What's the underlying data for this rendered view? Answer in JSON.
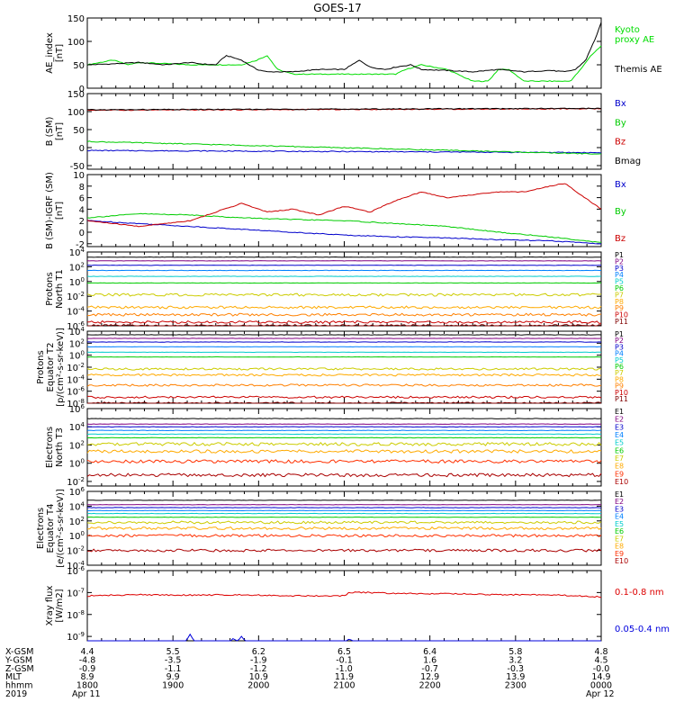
{
  "title": "GOES-17",
  "chart_data": [
    {
      "type": "line",
      "panel": "ae-index",
      "ylabel": [
        "AE_index",
        "[nT]"
      ],
      "yticks": [
        "150",
        "100",
        "50",
        "0"
      ],
      "ylim": [
        0,
        150
      ],
      "series": [
        {
          "name": "Kyoto",
          "name2": "proxy AE",
          "color": "#00dd00",
          "x": [
            0,
            0.05,
            0.08,
            0.1,
            0.2,
            0.3,
            0.33,
            0.35,
            0.37,
            0.4,
            0.43,
            0.5,
            0.55,
            0.6,
            0.62,
            0.65,
            0.7,
            0.75,
            0.78,
            0.8,
            0.82,
            0.85,
            0.9,
            0.94,
            0.96,
            0.98,
            1.0
          ],
          "values": [
            50,
            60,
            50,
            55,
            50,
            50,
            60,
            70,
            40,
            30,
            30,
            30,
            30,
            30,
            40,
            50,
            40,
            15,
            15,
            40,
            40,
            15,
            15,
            15,
            40,
            70,
            90
          ]
        },
        {
          "name": "Themis AE",
          "color": "#000000",
          "x": [
            0,
            0.05,
            0.1,
            0.15,
            0.2,
            0.22,
            0.25,
            0.27,
            0.3,
            0.33,
            0.35,
            0.37,
            0.4,
            0.45,
            0.5,
            0.53,
            0.55,
            0.58,
            0.6,
            0.63,
            0.65,
            0.7,
            0.75,
            0.8,
            0.85,
            0.9,
            0.93,
            0.95,
            0.97,
            0.99,
            1.0
          ],
          "values": [
            50,
            52,
            55,
            50,
            55,
            52,
            50,
            70,
            60,
            40,
            35,
            35,
            35,
            40,
            40,
            60,
            45,
            40,
            45,
            50,
            40,
            38,
            35,
            40,
            35,
            38,
            35,
            40,
            60,
            110,
            140
          ]
        }
      ]
    },
    {
      "type": "line",
      "panel": "b-sm",
      "ylabel": [
        "B (SM)",
        "[nT]"
      ],
      "yticks": [
        "150",
        "100",
        "50",
        "0",
        "-50"
      ],
      "ylim": [
        -60,
        150
      ],
      "series": [
        {
          "name": "Bx",
          "color": "#0000cc",
          "x": [
            0,
            1
          ],
          "values": [
            -8,
            -14
          ]
        },
        {
          "name": "By",
          "color": "#00cc00",
          "x": [
            0,
            1
          ],
          "values": [
            17,
            -18
          ]
        },
        {
          "name": "Bz",
          "color": "#cc0000",
          "x": [
            0,
            1
          ],
          "values": [
            104,
            108
          ]
        },
        {
          "name": "Bmag",
          "color": "#000000",
          "x": [
            0,
            1
          ],
          "values": [
            105,
            109
          ]
        }
      ]
    },
    {
      "type": "line",
      "panel": "b-minus-igrf",
      "ylabel": [
        "B (SM)-IGRF (SM)",
        "[nT]"
      ],
      "yticks": [
        "10",
        "8",
        "6",
        "4",
        "2",
        "0",
        "-2"
      ],
      "ylim": [
        -2.5,
        10
      ],
      "series": [
        {
          "name": "Bx",
          "color": "#0000cc",
          "x": [
            0,
            0.1,
            0.2,
            0.3,
            0.4,
            0.5,
            0.6,
            0.7,
            0.8,
            0.9,
            1.0
          ],
          "values": [
            2,
            1.5,
            1,
            0.5,
            0,
            -0.5,
            -0.8,
            -1,
            -1.3,
            -1.5,
            -2
          ]
        },
        {
          "name": "By",
          "color": "#00cc00",
          "x": [
            0,
            0.1,
            0.2,
            0.3,
            0.4,
            0.5,
            0.6,
            0.7,
            0.8,
            0.9,
            1.0
          ],
          "values": [
            2.5,
            3.2,
            3,
            2.5,
            2.2,
            2,
            1.5,
            1,
            0,
            -0.8,
            -1.8
          ]
        },
        {
          "name": "Bz",
          "color": "#cc0000",
          "x": [
            0,
            0.1,
            0.2,
            0.3,
            0.35,
            0.4,
            0.45,
            0.5,
            0.55,
            0.6,
            0.65,
            0.7,
            0.75,
            0.8,
            0.85,
            0.9,
            0.93,
            0.96,
            1.0
          ],
          "values": [
            2,
            1,
            2,
            5,
            3.5,
            4,
            3,
            4.5,
            3.5,
            5.5,
            7,
            6,
            6.5,
            7,
            7,
            8,
            8.5,
            6.5,
            4
          ]
        }
      ]
    },
    {
      "type": "line",
      "panel": "protons-t1",
      "log": true,
      "ylabel": [
        "Protons",
        "North T1"
      ],
      "yticks": [
        "10^4",
        "10^2",
        "10^0",
        "10^-2",
        "10^-4",
        "10^-6"
      ],
      "ylim": [
        -6,
        4
      ],
      "series": [
        {
          "name": "P1",
          "color": "#000000",
          "values": 3.3
        },
        {
          "name": "P2",
          "color": "#800080",
          "values": 2.8
        },
        {
          "name": "P3",
          "color": "#0000cc",
          "values": 2.2
        },
        {
          "name": "P4",
          "color": "#0080ff",
          "values": 1.5
        },
        {
          "name": "P5",
          "color": "#00cccc",
          "values": 0.7
        },
        {
          "name": "P6",
          "color": "#00cc00",
          "values": -0.2
        },
        {
          "name": "P7",
          "color": "#cccc00",
          "values": -1.8
        },
        {
          "name": "P8",
          "color": "#ffaa00",
          "values": -3.5
        },
        {
          "name": "P9",
          "color": "#ff8000",
          "values": -4.5
        },
        {
          "name": "P10",
          "color": "#cc0000",
          "values": -5.5
        },
        {
          "name": "P11",
          "color": "#800000",
          "values": -6
        }
      ]
    },
    {
      "type": "line",
      "panel": "protons-t2",
      "log": true,
      "ylabel": [
        "Protons",
        "Equator T2",
        "[p/(cm²-s-sr-keV)]"
      ],
      "yticks": [
        "10^4",
        "10^2",
        "10^0",
        "10^-2",
        "10^-4",
        "10^-6",
        "10^-8"
      ],
      "ylim": [
        -8,
        4
      ],
      "series": [
        {
          "name": "P1",
          "color": "#000000",
          "values": 3.4
        },
        {
          "name": "P2",
          "color": "#800080",
          "values": 2.8
        },
        {
          "name": "P3",
          "color": "#0000cc",
          "values": 2.2
        },
        {
          "name": "P4",
          "color": "#0080ff",
          "values": 1.4
        },
        {
          "name": "P5",
          "color": "#00cccc",
          "values": 0.5
        },
        {
          "name": "P6",
          "color": "#00cc00",
          "values": -0.3
        },
        {
          "name": "P7",
          "color": "#cccc00",
          "values": -2.3
        },
        {
          "name": "P8",
          "color": "#ffaa00",
          "values": -3.3
        },
        {
          "name": "P9",
          "color": "#ff8000",
          "values": -5
        },
        {
          "name": "P10",
          "color": "#cc0000",
          "values": -7
        },
        {
          "name": "P11",
          "color": "#800000",
          "values": -8
        }
      ]
    },
    {
      "type": "line",
      "panel": "electrons-t3",
      "log": true,
      "ylabel": [
        "Electrons",
        "North T3"
      ],
      "yticks": [
        "10^6",
        "10^4",
        "10^2",
        "10^0",
        "10^-2"
      ],
      "ylim": [
        -2.5,
        6
      ],
      "series": [
        {
          "name": "E1",
          "color": "#000000",
          "values": 4.9
        },
        {
          "name": "E2",
          "color": "#800080",
          "values": 4.3
        },
        {
          "name": "E3",
          "color": "#0000cc",
          "values": 4.0
        },
        {
          "name": "E4",
          "color": "#0080ff",
          "values": 3.6
        },
        {
          "name": "E5",
          "color": "#00cccc",
          "values": 3.2
        },
        {
          "name": "E6",
          "color": "#00cc00",
          "values": 2.8
        },
        {
          "name": "E7",
          "color": "#cccc00",
          "values": 2.1
        },
        {
          "name": "E8",
          "color": "#ffaa00",
          "values": 1.3
        },
        {
          "name": "E9",
          "color": "#ff3000",
          "values": 0.2
        },
        {
          "name": "E10",
          "color": "#aa0000",
          "values": -1.3
        }
      ]
    },
    {
      "type": "line",
      "panel": "electrons-t4",
      "log": true,
      "ylabel": [
        "Electrons",
        "Equator T4",
        "[e/(cm²-s-sr-keV)]"
      ],
      "yticks": [
        "10^6",
        "10^4",
        "10^2",
        "10^0",
        "10^-2",
        "10^-4"
      ],
      "ylim": [
        -4,
        6
      ],
      "series": [
        {
          "name": "E1",
          "color": "#000000",
          "values": 4.8
        },
        {
          "name": "E2",
          "color": "#800080",
          "values": 4.2
        },
        {
          "name": "E3",
          "color": "#0000cc",
          "values": 3.8
        },
        {
          "name": "E4",
          "color": "#0080ff",
          "values": 3.4
        },
        {
          "name": "E5",
          "color": "#00cccc",
          "values": 3.0
        },
        {
          "name": "E6",
          "color": "#00cc00",
          "values": 2.5
        },
        {
          "name": "E7",
          "color": "#cccc00",
          "values": 1.8
        },
        {
          "name": "E8",
          "color": "#ffaa00",
          "values": 1.0
        },
        {
          "name": "E9",
          "color": "#ff3000",
          "values": 0.0
        },
        {
          "name": "E10",
          "color": "#aa0000",
          "values": -2.0
        }
      ]
    },
    {
      "type": "line",
      "panel": "xray-flux",
      "log": true,
      "ylabel": [
        "Xray flux",
        "[W/m2]"
      ],
      "yticks": [
        "10^-6",
        "10^-7",
        "10^-8",
        "10^-9"
      ],
      "ylim": [
        -9.2,
        -6
      ],
      "series": [
        {
          "name": "0.1-0.8 nm",
          "color": "#dd0000",
          "x": [
            0,
            0.1,
            0.2,
            0.3,
            0.4,
            0.5,
            0.51,
            0.55,
            0.6,
            0.7,
            0.8,
            0.9,
            1.0
          ],
          "values": [
            -7.15,
            -7.1,
            -7.12,
            -7.1,
            -7.15,
            -7.15,
            -7.0,
            -7.0,
            -7.05,
            -7.05,
            -7.1,
            -7.1,
            -7.2
          ]
        },
        {
          "name": "0.05-0.4 nm",
          "color": "#0000dd",
          "x": [
            0,
            0.19,
            0.2,
            0.21,
            0.28,
            0.285,
            0.29,
            0.3,
            0.31,
            0.5,
            0.51,
            0.52,
            1.0
          ],
          "values": [
            -9.3,
            -9.3,
            -8.9,
            -9.3,
            -9.3,
            -9.0,
            -9.3,
            -9.0,
            -9.3,
            -9.3,
            -9.1,
            -9.3,
            -9.3
          ]
        }
      ]
    }
  ],
  "xaxis": {
    "row_labels": [
      "X-GSM",
      "Y-GSM",
      "Z-GSM",
      "MLT",
      "hhmm",
      "2019"
    ],
    "columns": [
      {
        "values": [
          "4.4",
          "-4.8",
          "-0.9",
          "8.9",
          "1800",
          "Apr 11"
        ]
      },
      {
        "values": [
          "5.5",
          "-3.5",
          "-1.1",
          "9.9",
          "1900",
          ""
        ]
      },
      {
        "values": [
          "6.2",
          "-1.9",
          "-1.2",
          "10.9",
          "2000",
          ""
        ]
      },
      {
        "values": [
          "6.5",
          "-0.1",
          "-1.0",
          "11.9",
          "2100",
          ""
        ]
      },
      {
        "values": [
          "6.4",
          "1.6",
          "-0.7",
          "12.9",
          "2200",
          ""
        ]
      },
      {
        "values": [
          "5.8",
          "3.2",
          "-0.3",
          "13.9",
          "2300",
          ""
        ]
      },
      {
        "values": [
          "4.8",
          "4.5",
          "-0.0",
          "14.9",
          "0000",
          "Apr 12"
        ]
      }
    ]
  }
}
